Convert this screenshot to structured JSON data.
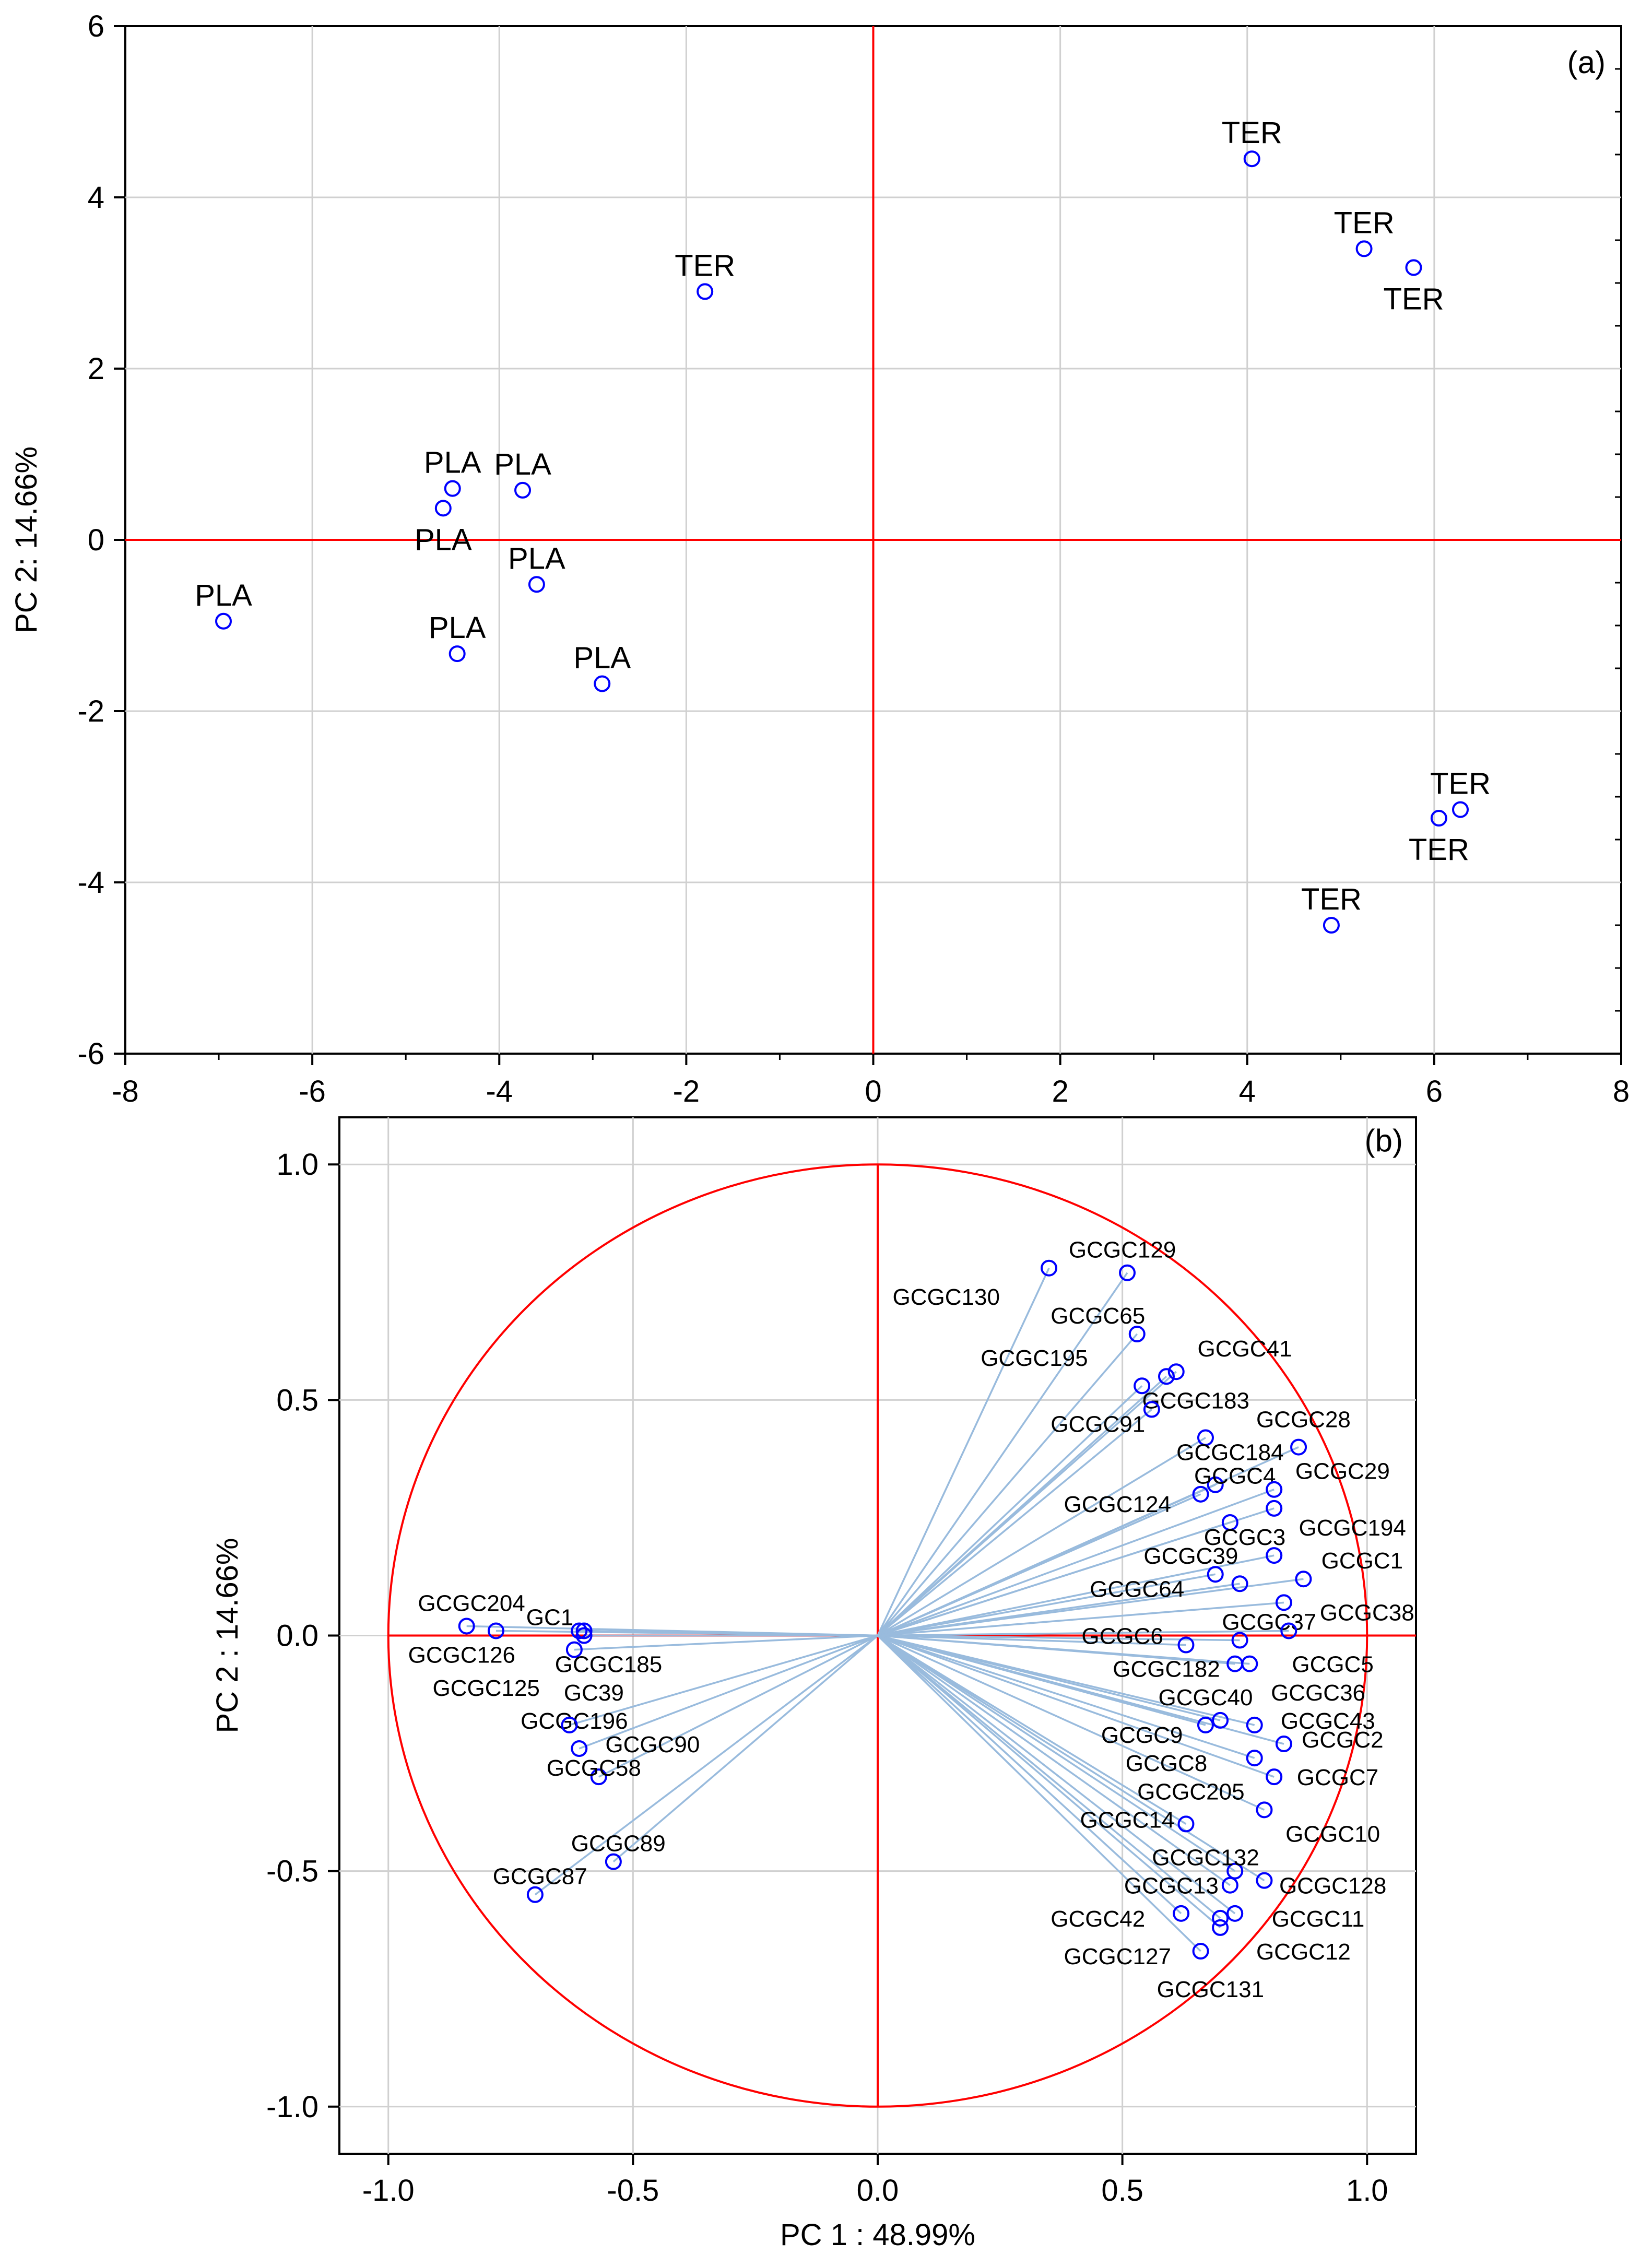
{
  "chart_data": [
    {
      "type": "scatter",
      "panel": "(a)",
      "title": "",
      "xlabel": "",
      "ylabel": "PC 2: 14.66%",
      "xlim": [
        -8,
        8
      ],
      "ylim": [
        -6,
        6
      ],
      "xticks": [
        -8,
        -6,
        -4,
        -2,
        0,
        2,
        4,
        6,
        8
      ],
      "yticks": [
        -6,
        -4,
        -2,
        0,
        2,
        4,
        6
      ],
      "xtick_labels": [
        "-8",
        "-6",
        "-4",
        "-2",
        "0",
        "2",
        "4",
        "6",
        "8"
      ],
      "ytick_labels": [
        "-6",
        "-4",
        "-2",
        "0",
        "2",
        "4",
        "6"
      ],
      "grid": true,
      "reference_lines": {
        "x": 0,
        "y": 0,
        "color": "#ff0000"
      },
      "marker_color": "#0000ff",
      "points": [
        {
          "label": "TER",
          "x": -1.8,
          "y": 2.9,
          "label_pos": "above"
        },
        {
          "label": "TER",
          "x": 4.05,
          "y": 4.45,
          "label_pos": "above"
        },
        {
          "label": "TER",
          "x": 5.25,
          "y": 3.4,
          "label_pos": "above"
        },
        {
          "label": "TER",
          "x": 5.78,
          "y": 3.18,
          "label_pos": "below"
        },
        {
          "label": "TER",
          "x": 6.28,
          "y": -3.15,
          "label_pos": "above"
        },
        {
          "label": "TER",
          "x": 6.05,
          "y": -3.25,
          "label_pos": "below"
        },
        {
          "label": "TER",
          "x": 4.9,
          "y": -4.5,
          "label_pos": "above"
        },
        {
          "label": "PLA",
          "x": -4.5,
          "y": 0.6,
          "label_pos": "above"
        },
        {
          "label": "PLA",
          "x": -3.75,
          "y": 0.58,
          "label_pos": "above"
        },
        {
          "label": "PLA",
          "x": -4.6,
          "y": 0.37,
          "label_pos": "below"
        },
        {
          "label": "PLA",
          "x": -3.6,
          "y": -0.52,
          "label_pos": "above"
        },
        {
          "label": "PLA",
          "x": -6.95,
          "y": -0.95,
          "label_pos": "above"
        },
        {
          "label": "PLA",
          "x": -4.45,
          "y": -1.33,
          "label_pos": "above"
        },
        {
          "label": "PLA",
          "x": -2.9,
          "y": -1.68,
          "label_pos": "above"
        }
      ],
      "annotation": "(a)"
    },
    {
      "type": "scatter",
      "panel": "(b)",
      "title": "",
      "xlabel": "PC 1 : 48.99%",
      "ylabel": "PC 2 : 14.66%",
      "xlim": [
        -1.1,
        1.1
      ],
      "ylim": [
        -1.1,
        1.1
      ],
      "xticks": [
        -1.0,
        -0.5,
        0.0,
        0.5,
        1.0
      ],
      "yticks": [
        -1.0,
        -0.5,
        0.0,
        0.5,
        1.0
      ],
      "xtick_labels": [
        "-1.0",
        "-0.5",
        "0.0",
        "0.5",
        "1.0"
      ],
      "ytick_labels": [
        "-1.0",
        "-0.5",
        "0.0",
        "0.5",
        "1.0"
      ],
      "grid": true,
      "unit_circle": true,
      "circle_color": "#ff0000",
      "vector_color": "#99bbdd",
      "marker_color": "#0000ff",
      "points": [
        {
          "label": "GCGC129",
          "x": 0.51,
          "y": 0.77,
          "lx": 0.5,
          "ly": 0.82
        },
        {
          "label": "GCGC130",
          "x": 0.35,
          "y": 0.78,
          "lx": 0.14,
          "ly": 0.72
        },
        {
          "label": "GCGC65",
          "x": 0.53,
          "y": 0.64,
          "lx": 0.45,
          "ly": 0.68
        },
        {
          "label": "GCGC195",
          "x": 0.54,
          "y": 0.53,
          "lx": 0.32,
          "ly": 0.59
        },
        {
          "label": "GCGC41",
          "x": 0.61,
          "y": 0.56,
          "lx": 0.75,
          "ly": 0.61
        },
        {
          "label": "GCGC183",
          "x": 0.59,
          "y": 0.55,
          "lx": 0.65,
          "ly": 0.5
        },
        {
          "label": "GCGC91",
          "x": 0.56,
          "y": 0.48,
          "lx": 0.45,
          "ly": 0.45
        },
        {
          "label": "GCGC28",
          "x": 0.86,
          "y": 0.4,
          "lx": 0.87,
          "ly": 0.46
        },
        {
          "label": "GCGC184",
          "x": 0.67,
          "y": 0.42,
          "lx": 0.72,
          "ly": 0.39
        },
        {
          "label": "GCGC4",
          "x": 0.69,
          "y": 0.32,
          "lx": 0.73,
          "ly": 0.34
        },
        {
          "label": "GCGC29",
          "x": 0.81,
          "y": 0.31,
          "lx": 0.95,
          "ly": 0.35
        },
        {
          "label": "GCGC124",
          "x": 0.66,
          "y": 0.3,
          "lx": 0.49,
          "ly": 0.28
        },
        {
          "label": "GCGC194",
          "x": 0.81,
          "y": 0.27,
          "lx": 0.97,
          "ly": 0.23
        },
        {
          "label": "GCGC3",
          "x": 0.72,
          "y": 0.24,
          "lx": 0.75,
          "ly": 0.21
        },
        {
          "label": "GCGC1",
          "x": 0.81,
          "y": 0.17,
          "lx": 0.99,
          "ly": 0.16
        },
        {
          "label": "GCGC39",
          "x": 0.69,
          "y": 0.13,
          "lx": 0.64,
          "ly": 0.17
        },
        {
          "label": "GCGC64",
          "x": 0.74,
          "y": 0.11,
          "lx": 0.53,
          "ly": 0.1
        },
        {
          "label": "GCGC38",
          "x": 0.87,
          "y": 0.12,
          "lx": 1.0,
          "ly": 0.05
        },
        {
          "label": "GCGC37",
          "x": 0.83,
          "y": 0.07,
          "lx": 0.8,
          "ly": 0.03
        },
        {
          "label": "GCGC6",
          "x": 0.84,
          "y": 0.01,
          "lx": 0.5,
          "ly": 0.0
        },
        {
          "label": "GCGC182",
          "x": 0.63,
          "y": -0.02,
          "lx": 0.59,
          "ly": -0.07
        },
        {
          "label": "GCGC5",
          "x": 0.74,
          "y": -0.01,
          "lx": 0.93,
          "ly": -0.06
        },
        {
          "label": "GCGC36",
          "x": 0.76,
          "y": -0.06,
          "lx": 0.9,
          "ly": -0.12
        },
        {
          "label": "GCGC40",
          "x": 0.73,
          "y": -0.06,
          "lx": 0.67,
          "ly": -0.13
        },
        {
          "label": "GCGC43",
          "x": 0.77,
          "y": -0.19,
          "lx": 0.92,
          "ly": -0.18
        },
        {
          "label": "GCGC9",
          "x": 0.67,
          "y": -0.19,
          "lx": 0.54,
          "ly": -0.21
        },
        {
          "label": "GCGC2",
          "x": 0.83,
          "y": -0.23,
          "lx": 0.95,
          "ly": -0.22
        },
        {
          "label": "GCGC8",
          "x": 0.7,
          "y": -0.18,
          "lx": 0.59,
          "ly": -0.27
        },
        {
          "label": "GCGC7",
          "x": 0.81,
          "y": -0.3,
          "lx": 0.94,
          "ly": -0.3
        },
        {
          "label": "GCGC205",
          "x": 0.77,
          "y": -0.26,
          "lx": 0.64,
          "ly": -0.33
        },
        {
          "label": "GCGC14",
          "x": 0.63,
          "y": -0.4,
          "lx": 0.51,
          "ly": -0.39
        },
        {
          "label": "GCGC10",
          "x": 0.79,
          "y": -0.37,
          "lx": 0.93,
          "ly": -0.42
        },
        {
          "label": "GCGC132",
          "x": 0.73,
          "y": -0.5,
          "lx": 0.67,
          "ly": -0.47
        },
        {
          "label": "GCGC13",
          "x": 0.72,
          "y": -0.53,
          "lx": 0.6,
          "ly": -0.53
        },
        {
          "label": "GCGC128",
          "x": 0.79,
          "y": -0.52,
          "lx": 0.93,
          "ly": -0.53
        },
        {
          "label": "GCGC42",
          "x": 0.62,
          "y": -0.59,
          "lx": 0.45,
          "ly": -0.6
        },
        {
          "label": "GCGC11",
          "x": 0.7,
          "y": -0.6,
          "lx": 0.9,
          "ly": -0.6
        },
        {
          "label": "GCGC12",
          "x": 0.73,
          "y": -0.59,
          "lx": 0.87,
          "ly": -0.67
        },
        {
          "label": "GCGC127",
          "x": 0.66,
          "y": -0.67,
          "lx": 0.49,
          "ly": -0.68
        },
        {
          "label": "GCGC131",
          "x": 0.7,
          "y": -0.62,
          "lx": 0.68,
          "ly": -0.75
        },
        {
          "label": "GCGC204",
          "x": -0.84,
          "y": 0.02,
          "lx": -0.83,
          "ly": 0.07
        },
        {
          "label": "GC1",
          "x": -0.61,
          "y": 0.01,
          "lx": -0.67,
          "ly": 0.04
        },
        {
          "label": "GCGC126",
          "x": -0.78,
          "y": 0.01,
          "lx": -0.85,
          "ly": -0.04
        },
        {
          "label": "GCGC185",
          "x": -0.62,
          "y": -0.03,
          "lx": -0.55,
          "ly": -0.06
        },
        {
          "label": "GCGC125",
          "x": -0.6,
          "y": 0.01,
          "lx": -0.8,
          "ly": -0.11
        },
        {
          "label": "GC39",
          "x": -0.6,
          "y": 0.0,
          "lx": -0.58,
          "ly": -0.12
        },
        {
          "label": "GCGC196",
          "x": -0.61,
          "y": -0.24,
          "lx": -0.62,
          "ly": -0.18
        },
        {
          "label": "GCGC90",
          "x": -0.63,
          "y": -0.19,
          "lx": -0.46,
          "ly": -0.23
        },
        {
          "label": "GCGC58",
          "x": -0.57,
          "y": -0.3,
          "lx": -0.58,
          "ly": -0.28
        },
        {
          "label": "GCGC89",
          "x": -0.54,
          "y": -0.48,
          "lx": -0.53,
          "ly": -0.44
        },
        {
          "label": "GCGC87",
          "x": -0.7,
          "y": -0.55,
          "lx": -0.69,
          "ly": -0.51
        }
      ],
      "annotation": "(b)"
    }
  ]
}
